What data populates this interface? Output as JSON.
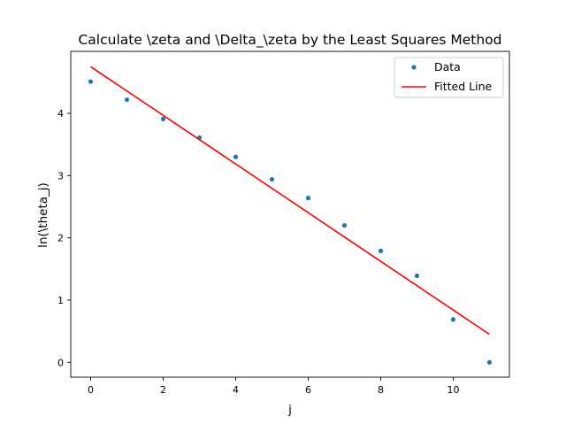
{
  "chart_data": {
    "type": "scatter",
    "title": "Calculate \\zeta and \\Delta_\\zeta by the Least Squares Method",
    "xlabel": "j",
    "ylabel": "ln(\\theta_j)",
    "xlim": [
      -0.55,
      11.55
    ],
    "ylim": [
      -0.238,
      4.996
    ],
    "xticks": [
      0,
      2,
      4,
      6,
      8,
      10
    ],
    "yticks": [
      0,
      1,
      2,
      3,
      4
    ],
    "grid": false,
    "legend_position": "top-right",
    "series": [
      {
        "name": "Data",
        "kind": "points",
        "color": "#1f77b4",
        "x": [
          0,
          1,
          2,
          3,
          4,
          5,
          6,
          7,
          8,
          9,
          10,
          11
        ],
        "y": [
          4.51,
          4.22,
          3.91,
          3.61,
          3.3,
          2.94,
          2.64,
          2.2,
          1.79,
          1.39,
          0.69,
          0.0
        ]
      },
      {
        "name": "Fitted Line",
        "kind": "line",
        "color": "#ff0000",
        "x": [
          0,
          11
        ],
        "y": [
          4.75,
          0.45
        ]
      }
    ]
  }
}
